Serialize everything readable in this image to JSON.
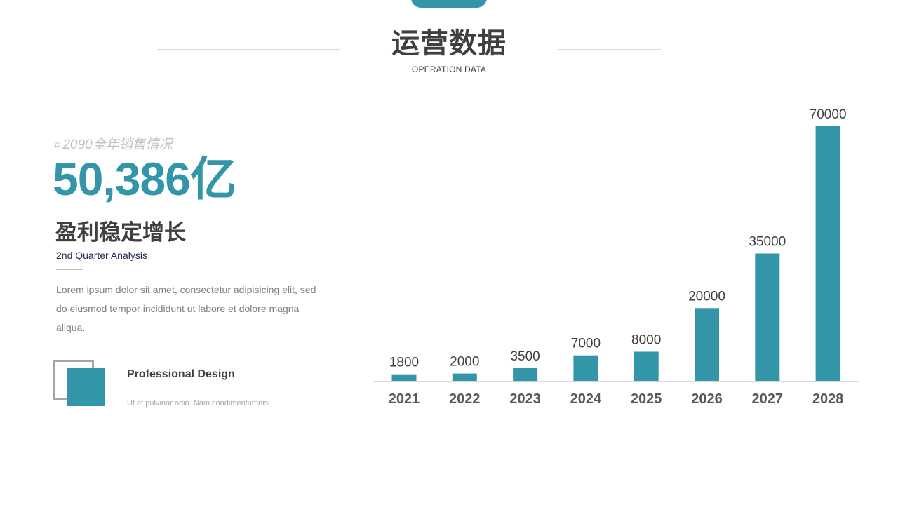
{
  "header": {
    "title": "运营数据",
    "subtitle": "OPERATION DATA"
  },
  "summary": {
    "label": "2090全年销售情况",
    "hash": "#",
    "value": "50,386亿"
  },
  "section": {
    "heading": "盈利稳定增长",
    "subheading": "2nd Quarter Analysis",
    "body": "Lorem ipsum dolor sit amet, consectetur adipisicing elit, sed do eiusmod tempor incididunt ut labore et dolore magna aliqua."
  },
  "feature": {
    "title": "Professional Design",
    "description": "Ut et pulvinar odio. Nam condimentumnisl"
  },
  "colors": {
    "accent": "#3395a8",
    "text_dark": "#3f3f3f",
    "text_muted": "#7f7f7f"
  },
  "chart_data": {
    "type": "bar",
    "categories": [
      "2021",
      "2022",
      "2023",
      "2024",
      "2025",
      "2026",
      "2027",
      "2028"
    ],
    "values": [
      1800,
      2000,
      3500,
      7000,
      8000,
      20000,
      35000,
      70000
    ],
    "data_labels": [
      "1800",
      "2000",
      "3500",
      "7000",
      "8000",
      "20000",
      "35000",
      "70000"
    ],
    "ylim": [
      0,
      70000
    ],
    "grid": false,
    "legend": "none"
  }
}
